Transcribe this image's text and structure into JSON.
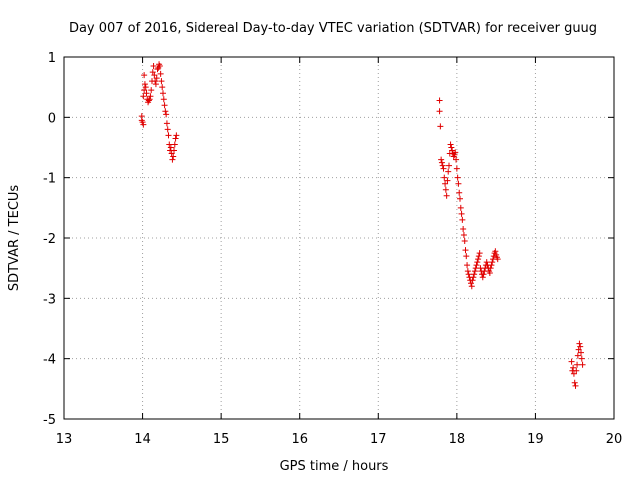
{
  "chart_data": {
    "type": "scatter",
    "title": "Day 007 of 2016, Sidereal Day-to-day VTEC variation (SDTVAR) for receiver guug",
    "xlabel": "GPS time / hours",
    "ylabel": "SDTVAR / TECUs",
    "xlim": [
      13,
      20
    ],
    "ylim": [
      -5,
      1
    ],
    "xticks": [
      "13",
      "14",
      "15",
      "16",
      "17",
      "18",
      "19",
      "20"
    ],
    "yticks": [
      "1",
      "0",
      "-1",
      "-2",
      "-3",
      "-4",
      "-5"
    ],
    "grid": true,
    "marker": "+",
    "colors": {
      "points": "#e00000",
      "grid": "#a0a0a0",
      "frame": "#000000"
    },
    "series": [
      {
        "name": "SDTVAR",
        "points": [
          [
            13.99,
            0.02
          ],
          [
            13.99,
            -0.05
          ],
          [
            14.0,
            -0.08
          ],
          [
            14.01,
            -0.12
          ],
          [
            14.01,
            0.35
          ],
          [
            14.02,
            0.45
          ],
          [
            14.02,
            0.7
          ],
          [
            14.03,
            0.55
          ],
          [
            14.04,
            0.5
          ],
          [
            14.05,
            0.4
          ],
          [
            14.06,
            0.3
          ],
          [
            14.07,
            0.25
          ],
          [
            14.08,
            0.28
          ],
          [
            14.09,
            0.3
          ],
          [
            14.1,
            0.35
          ],
          [
            14.11,
            0.45
          ],
          [
            14.12,
            0.6
          ],
          [
            14.13,
            0.75
          ],
          [
            14.14,
            0.85
          ],
          [
            14.15,
            0.7
          ],
          [
            14.16,
            0.6
          ],
          [
            14.17,
            0.55
          ],
          [
            14.18,
            0.65
          ],
          [
            14.19,
            0.8
          ],
          [
            14.2,
            0.82
          ],
          [
            14.21,
            0.88
          ],
          [
            14.22,
            0.85
          ],
          [
            14.23,
            0.72
          ],
          [
            14.24,
            0.6
          ],
          [
            14.25,
            0.5
          ],
          [
            14.26,
            0.4
          ],
          [
            14.27,
            0.3
          ],
          [
            14.28,
            0.2
          ],
          [
            14.29,
            0.1
          ],
          [
            14.3,
            0.05
          ],
          [
            14.31,
            -0.1
          ],
          [
            14.32,
            -0.2
          ],
          [
            14.33,
            -0.3
          ],
          [
            14.34,
            -0.45
          ],
          [
            14.35,
            -0.55
          ],
          [
            14.36,
            -0.5
          ],
          [
            14.37,
            -0.6
          ],
          [
            14.38,
            -0.7
          ],
          [
            14.39,
            -0.65
          ],
          [
            14.4,
            -0.55
          ],
          [
            14.41,
            -0.45
          ],
          [
            14.42,
            -0.35
          ],
          [
            14.43,
            -0.3
          ],
          [
            17.78,
            0.28
          ],
          [
            17.78,
            0.1
          ],
          [
            17.79,
            -0.15
          ],
          [
            17.8,
            -0.7
          ],
          [
            17.81,
            -0.75
          ],
          [
            17.82,
            -0.8
          ],
          [
            17.83,
            -0.85
          ],
          [
            17.84,
            -1.0
          ],
          [
            17.85,
            -1.1
          ],
          [
            17.86,
            -1.2
          ],
          [
            17.87,
            -1.3
          ],
          [
            17.88,
            -1.05
          ],
          [
            17.89,
            -0.9
          ],
          [
            17.9,
            -0.8
          ],
          [
            17.91,
            -0.6
          ],
          [
            17.92,
            -0.45
          ],
          [
            17.93,
            -0.5
          ],
          [
            17.94,
            -0.55
          ],
          [
            17.95,
            -0.6
          ],
          [
            17.96,
            -0.65
          ],
          [
            17.97,
            -0.62
          ],
          [
            17.98,
            -0.58
          ],
          [
            17.99,
            -0.7
          ],
          [
            18.0,
            -0.85
          ],
          [
            18.01,
            -1.0
          ],
          [
            18.02,
            -1.1
          ],
          [
            18.03,
            -1.25
          ],
          [
            18.04,
            -1.35
          ],
          [
            18.05,
            -1.5
          ],
          [
            18.06,
            -1.6
          ],
          [
            18.07,
            -1.7
          ],
          [
            18.08,
            -1.85
          ],
          [
            18.09,
            -1.95
          ],
          [
            18.1,
            -2.05
          ],
          [
            18.11,
            -2.2
          ],
          [
            18.12,
            -2.3
          ],
          [
            18.13,
            -2.45
          ],
          [
            18.14,
            -2.55
          ],
          [
            18.15,
            -2.6
          ],
          [
            18.16,
            -2.65
          ],
          [
            18.17,
            -2.7
          ],
          [
            18.18,
            -2.75
          ],
          [
            18.19,
            -2.8
          ],
          [
            18.2,
            -2.7
          ],
          [
            18.21,
            -2.65
          ],
          [
            18.22,
            -2.6
          ],
          [
            18.23,
            -2.55
          ],
          [
            18.24,
            -2.5
          ],
          [
            18.25,
            -2.45
          ],
          [
            18.26,
            -2.4
          ],
          [
            18.27,
            -2.35
          ],
          [
            18.28,
            -2.3
          ],
          [
            18.29,
            -2.25
          ],
          [
            18.3,
            -2.5
          ],
          [
            18.31,
            -2.55
          ],
          [
            18.32,
            -2.6
          ],
          [
            18.33,
            -2.65
          ],
          [
            18.34,
            -2.6
          ],
          [
            18.35,
            -2.55
          ],
          [
            18.36,
            -2.5
          ],
          [
            18.37,
            -2.45
          ],
          [
            18.38,
            -2.4
          ],
          [
            18.39,
            -2.45
          ],
          [
            18.4,
            -2.5
          ],
          [
            18.41,
            -2.55
          ],
          [
            18.42,
            -2.58
          ],
          [
            18.43,
            -2.5
          ],
          [
            18.44,
            -2.45
          ],
          [
            18.45,
            -2.4
          ],
          [
            18.46,
            -2.35
          ],
          [
            18.47,
            -2.3
          ],
          [
            18.48,
            -2.25
          ],
          [
            18.49,
            -2.22
          ],
          [
            18.5,
            -2.28
          ],
          [
            18.51,
            -2.32
          ],
          [
            18.52,
            -2.35
          ],
          [
            19.46,
            -4.05
          ],
          [
            19.47,
            -4.2
          ],
          [
            19.48,
            -4.15
          ],
          [
            19.49,
            -4.25
          ],
          [
            19.5,
            -4.4
          ],
          [
            19.51,
            -4.45
          ],
          [
            19.52,
            -4.2
          ],
          [
            19.53,
            -4.1
          ],
          [
            19.54,
            -3.95
          ],
          [
            19.55,
            -3.85
          ],
          [
            19.56,
            -3.75
          ],
          [
            19.57,
            -3.8
          ],
          [
            19.58,
            -3.9
          ],
          [
            19.59,
            -4.0
          ],
          [
            19.6,
            -4.1
          ]
        ]
      }
    ]
  }
}
